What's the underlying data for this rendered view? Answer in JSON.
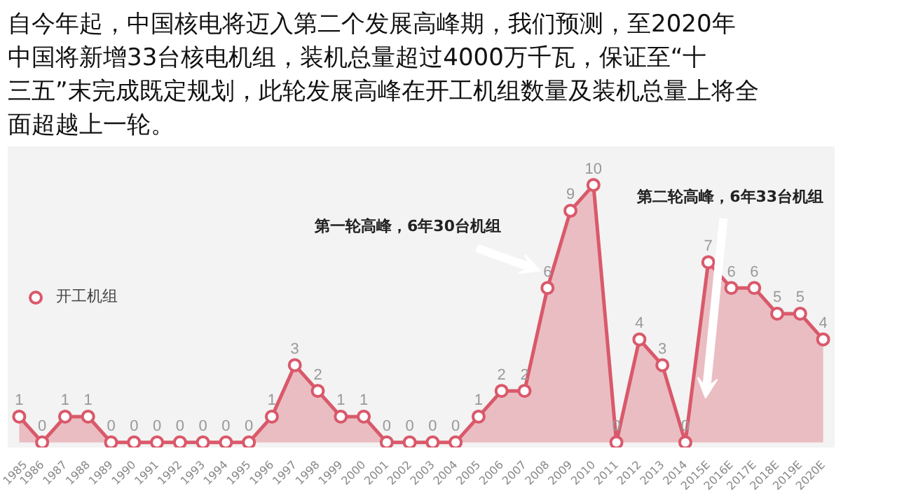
{
  "chart_data": {
    "type": "area",
    "title": "自今年起，中国核电将迈入第二个发展高峰期，我们预测，至2020年中国将新增33台核电机组，装机总量超过4000万千瓦，保证至“十三五”末完成既定规划，此轮发展高峰在开工机组数量及装机总量上将全面超越上一轮。",
    "categories": [
      "1985",
      "1986",
      "1987",
      "1988",
      "1989",
      "1990",
      "1991",
      "1992",
      "1993",
      "1994",
      "1995",
      "1996",
      "1997",
      "1998",
      "1999",
      "2000",
      "2001",
      "2002",
      "2003",
      "2004",
      "2005",
      "2006",
      "2007",
      "2008",
      "2009",
      "2010",
      "2011",
      "2012",
      "2013",
      "2014",
      "2015E",
      "2016E",
      "2017E",
      "2018E",
      "2019E",
      "2020E"
    ],
    "series": [
      {
        "name": "开工机组",
        "color": "#d9596a",
        "values": [
          1,
          0,
          1,
          1,
          0,
          0,
          0,
          0,
          0,
          0,
          0,
          1,
          3,
          2,
          1,
          1,
          0,
          0,
          0,
          0,
          1,
          2,
          2,
          6,
          9,
          10,
          0,
          4,
          3,
          0,
          7,
          6,
          6,
          5,
          5,
          4
        ]
      }
    ],
    "annotations": [
      "第一轮高峰，6年30台机组",
      "第二轮高峰，6年33台机组"
    ],
    "data_labels": true,
    "marker": "circle",
    "legend": "left"
  }
}
